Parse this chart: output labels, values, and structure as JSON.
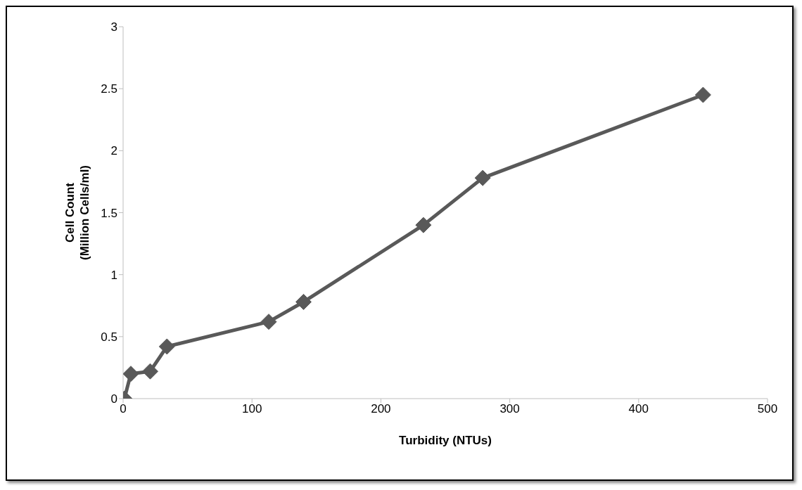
{
  "chart_data": {
    "type": "line",
    "xlabel": "Turbidity (NTUs)",
    "ylabel": "Cell Count\n(Million Cells/ml)",
    "x": [
      1,
      6,
      21,
      34,
      113,
      140,
      233,
      279,
      450
    ],
    "series": [
      {
        "color": "#595959",
        "values": [
          0,
          0.2,
          0.22,
          0.42,
          0.62,
          0.78,
          1.4,
          1.78,
          2.45
        ]
      }
    ],
    "xlim": [
      0,
      500
    ],
    "xticks": [
      0,
      100,
      200,
      300,
      400,
      500
    ],
    "ylim": [
      0,
      3
    ],
    "yticks": [
      0,
      0.5,
      1,
      1.5,
      2,
      2.5,
      3
    ],
    "grid": false,
    "legend": false,
    "marker": "diamond",
    "line_style": "solid"
  }
}
